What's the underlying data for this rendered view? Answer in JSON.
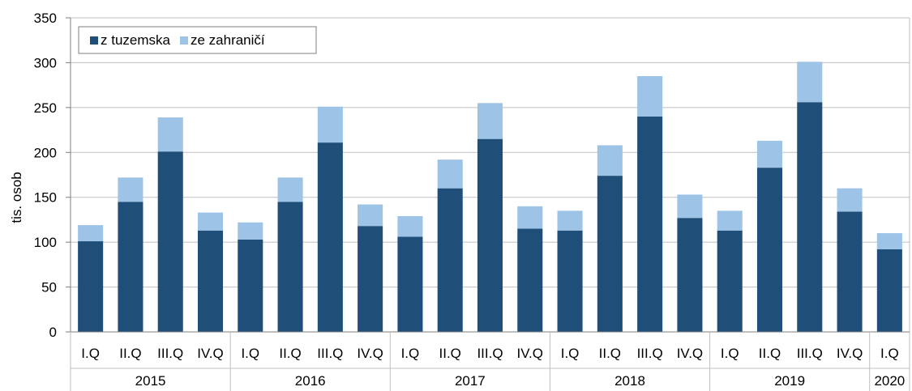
{
  "chart_data": {
    "type": "bar",
    "stacked": true,
    "ylabel": "tis. osob",
    "ylim": [
      0,
      350
    ],
    "yticks": [
      0,
      50,
      100,
      150,
      200,
      250,
      300,
      350
    ],
    "grid": "horizontal",
    "legend_position": "top-left",
    "categories": [
      "I.Q",
      "II.Q",
      "III.Q",
      "IV.Q",
      "I.Q",
      "II.Q",
      "III.Q",
      "IV.Q",
      "I.Q",
      "II.Q",
      "III.Q",
      "IV.Q",
      "I.Q",
      "II.Q",
      "III.Q",
      "IV.Q",
      "I.Q",
      "II.Q",
      "III.Q",
      "IV.Q",
      "I.Q"
    ],
    "groups": [
      {
        "label": "2015",
        "count": 4
      },
      {
        "label": "2016",
        "count": 4
      },
      {
        "label": "2017",
        "count": 4
      },
      {
        "label": "2018",
        "count": 4
      },
      {
        "label": "2019",
        "count": 4
      },
      {
        "label": "2020",
        "count": 1
      }
    ],
    "series": [
      {
        "name": "z tuzemska",
        "color": "#1f4e79",
        "values": [
          101,
          145,
          201,
          113,
          103,
          145,
          211,
          118,
          106,
          160,
          215,
          115,
          113,
          174,
          240,
          127,
          113,
          183,
          256,
          134,
          92
        ]
      },
      {
        "name": "ze zahraničí",
        "color": "#9dc3e6",
        "values": [
          18,
          27,
          38,
          20,
          19,
          27,
          40,
          24,
          23,
          32,
          40,
          25,
          22,
          34,
          45,
          26,
          22,
          30,
          45,
          26,
          18
        ]
      }
    ]
  }
}
